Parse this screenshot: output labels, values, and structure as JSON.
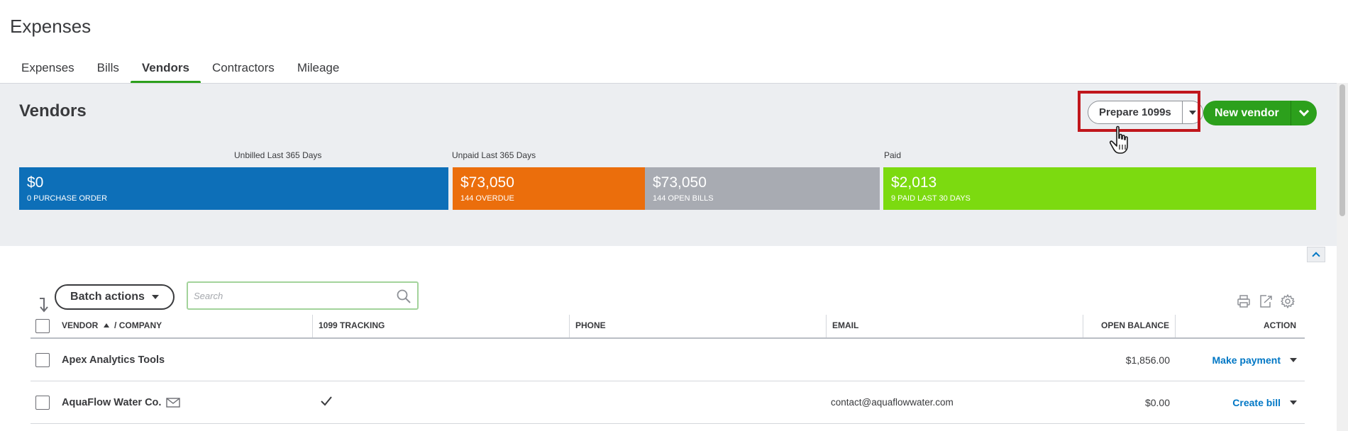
{
  "page": {
    "title": "Expenses"
  },
  "tabs": [
    {
      "label": "Expenses",
      "active": false
    },
    {
      "label": "Bills",
      "active": false
    },
    {
      "label": "Vendors",
      "active": true
    },
    {
      "label": "Contractors",
      "active": false
    },
    {
      "label": "Mileage",
      "active": false
    }
  ],
  "header": {
    "title": "Vendors",
    "prepare_label": "Prepare 1099s",
    "new_vendor_label": "New vendor"
  },
  "stats": {
    "unbilled_label": "Unbilled Last 365 Days",
    "unpaid_label": "Unpaid Last 365 Days",
    "paid_label": "Paid",
    "purchase_order": {
      "amount": "$0",
      "label": "0 PURCHASE ORDER",
      "color": "#0d6fb8"
    },
    "overdue": {
      "amount": "$73,050",
      "label": "144 OVERDUE",
      "color": "#eb6e0c"
    },
    "open_bills": {
      "amount": "$73,050",
      "label": "144 OPEN BILLS",
      "color": "#a8abb2"
    },
    "paid": {
      "amount": "$2,013",
      "label": "9 PAID LAST 30 DAYS",
      "color": "#7cda10"
    }
  },
  "toolbar": {
    "batch_label": "Batch actions",
    "search_placeholder": "Search",
    "icons": [
      "print-icon",
      "export-icon",
      "settings-gear-icon"
    ]
  },
  "table": {
    "columns": {
      "vendor": "VENDOR",
      "company": "/ COMPANY",
      "tracking": "1099 TRACKING",
      "phone": "PHONE",
      "email": "EMAIL",
      "balance": "OPEN BALANCE",
      "action": "ACTION"
    },
    "rows": [
      {
        "vendor": "Apex Analytics Tools",
        "has_email_icon": false,
        "tracking": false,
        "phone": "",
        "email": "",
        "balance": "$1,856.00",
        "action": "Make payment"
      },
      {
        "vendor": "AquaFlow Water Co.",
        "has_email_icon": true,
        "tracking": true,
        "phone": "",
        "email": "contact@aquaflowwater.com",
        "balance": "$0.00",
        "action": "Create bill"
      }
    ]
  },
  "colors": {
    "accent_green": "#2ca01c",
    "link_blue": "#0077c5",
    "highlight_red": "#c0161c"
  }
}
